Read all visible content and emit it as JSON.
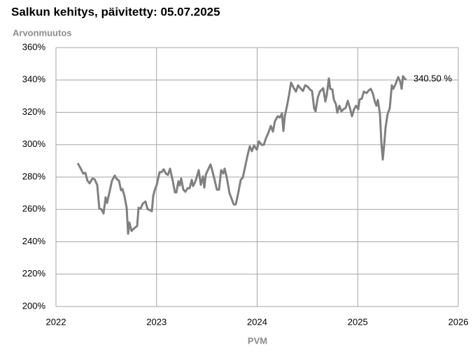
{
  "chart_data": {
    "type": "line",
    "title": "Salkun kehitys, päivitetty: 05.07.2025",
    "y_label": "Arvonmuutos",
    "x_label": "PVM",
    "annotation": "340.50 %",
    "color": "#808080",
    "grid": true,
    "xlim": [
      2022,
      2026
    ],
    "xticks": [
      2022,
      2023,
      2024,
      2025,
      2026
    ],
    "ylim": [
      200,
      360
    ],
    "yticks": [
      {
        "value": 200,
        "label": "200%"
      },
      {
        "value": 220,
        "label": "220%"
      },
      {
        "value": 240,
        "label": "240%"
      },
      {
        "value": 260,
        "label": "260%"
      },
      {
        "value": 280,
        "label": "280%"
      },
      {
        "value": 300,
        "label": "300%"
      },
      {
        "value": 320,
        "label": "320%"
      },
      {
        "value": 340,
        "label": "340%"
      },
      {
        "value": 360,
        "label": "360%"
      }
    ],
    "x": [
      2022.216,
      2022.243,
      2022.271,
      2022.292,
      2022.313,
      2022.334,
      2022.362,
      2022.383,
      2022.41,
      2022.431,
      2022.452,
      2022.473,
      2022.494,
      2022.508,
      2022.536,
      2022.557,
      2022.584,
      2022.605,
      2022.626,
      2022.647,
      2022.661,
      2022.682,
      2022.703,
      2022.717,
      2022.73,
      2022.751,
      2022.779,
      2022.807,
      2022.821,
      2022.842,
      2022.863,
      2022.89,
      2022.911,
      2022.932,
      2022.953,
      2022.967,
      2022.981,
      2023.002,
      2023.03,
      2023.05,
      2023.071,
      2023.092,
      2023.113,
      2023.134,
      2023.162,
      2023.183,
      2023.197,
      2023.217,
      2023.231,
      2023.245,
      2023.266,
      2023.287,
      2023.308,
      2023.329,
      2023.35,
      2023.363,
      2023.384,
      2023.398,
      2023.419,
      2023.44,
      2023.461,
      2023.475,
      2023.489,
      2023.51,
      2023.537,
      2023.558,
      2023.579,
      2023.6,
      2023.621,
      2023.642,
      2023.663,
      2023.677,
      2023.697,
      2023.725,
      2023.746,
      2023.767,
      2023.788,
      2023.816,
      2023.837,
      2023.857,
      2023.878,
      2023.906,
      2023.927,
      2023.948,
      2023.969,
      2023.997,
      2024.017,
      2024.045,
      2024.066,
      2024.087,
      2024.108,
      2024.136,
      2024.157,
      2024.177,
      2024.205,
      2024.226,
      2024.247,
      2024.261,
      2024.275,
      2024.296,
      2024.317,
      2024.337,
      2024.365,
      2024.386,
      2024.407,
      2024.435,
      2024.456,
      2024.477,
      2024.504,
      2024.525,
      2024.546,
      2024.567,
      2024.581,
      2024.602,
      2024.623,
      2024.637,
      2024.657,
      2024.678,
      2024.692,
      2024.706,
      2024.713,
      2024.727,
      2024.748,
      2024.762,
      2024.783,
      2024.797,
      2024.817,
      2024.838,
      2024.859,
      2024.88,
      2024.901,
      2024.922,
      2024.943,
      2024.963,
      2024.984,
      2025.005,
      2025.019,
      2025.04,
      2025.061,
      2025.089,
      2025.11,
      2025.13,
      2025.151,
      2025.172,
      2025.186,
      2025.2,
      2025.221,
      2025.235,
      2025.249,
      2025.263,
      2025.277,
      2025.297,
      2025.318,
      2025.339,
      2025.353,
      2025.374,
      2025.402,
      2025.423,
      2025.437,
      2025.45,
      2025.471,
      2025.485
    ],
    "values": [
      288.6,
      285.6,
      282.2,
      282.6,
      277.8,
      276.1,
      279.1,
      278.7,
      275.2,
      260.5,
      260.1,
      257.5,
      267.5,
      264.0,
      271.8,
      277.8,
      280.9,
      278.7,
      277.8,
      271.8,
      272.6,
      267.9,
      261.0,
      245.0,
      251.9,
      246.7,
      248.4,
      249.7,
      261.0,
      260.5,
      263.6,
      264.9,
      260.1,
      259.7,
      258.8,
      268.3,
      271.8,
      275.2,
      283.0,
      283.0,
      284.8,
      282.2,
      281.3,
      285.2,
      277.4,
      270.5,
      270.5,
      277.4,
      274.8,
      279.1,
      272.2,
      270.9,
      273.1,
      273.1,
      278.3,
      274.4,
      277.0,
      279.6,
      284.3,
      275.2,
      280.4,
      273.5,
      281.3,
      284.3,
      287.8,
      283.0,
      277.8,
      272.2,
      272.2,
      284.3,
      282.2,
      285.2,
      280.0,
      270.1,
      266.6,
      263.1,
      263.1,
      271.4,
      278.3,
      279.6,
      285.6,
      293.8,
      299.0,
      296.0,
      299.5,
      296.9,
      302.1,
      299.9,
      299.9,
      303.8,
      306.8,
      311.6,
      308.1,
      314.6,
      317.6,
      316.8,
      319.4,
      308.5,
      317.6,
      323.7,
      330.6,
      338.4,
      334.9,
      332.8,
      336.7,
      334.5,
      333.2,
      336.7,
      335.8,
      334.1,
      333.2,
      322.4,
      320.6,
      328.9,
      332.8,
      333.6,
      334.9,
      326.7,
      330.6,
      337.5,
      341.0,
      334.5,
      334.1,
      328.0,
      325.0,
      319.8,
      324.1,
      320.6,
      321.9,
      322.8,
      327.1,
      322.8,
      317.6,
      321.9,
      324.1,
      321.9,
      328.0,
      328.4,
      332.8,
      331.9,
      333.6,
      334.5,
      331.5,
      326.3,
      324.1,
      327.6,
      318.9,
      301.6,
      290.8,
      299.9,
      310.7,
      318.9,
      322.4,
      336.7,
      334.5,
      337.1,
      341.8,
      338.8,
      334.5,
      342.3,
      340.5,
      340.5
    ]
  }
}
